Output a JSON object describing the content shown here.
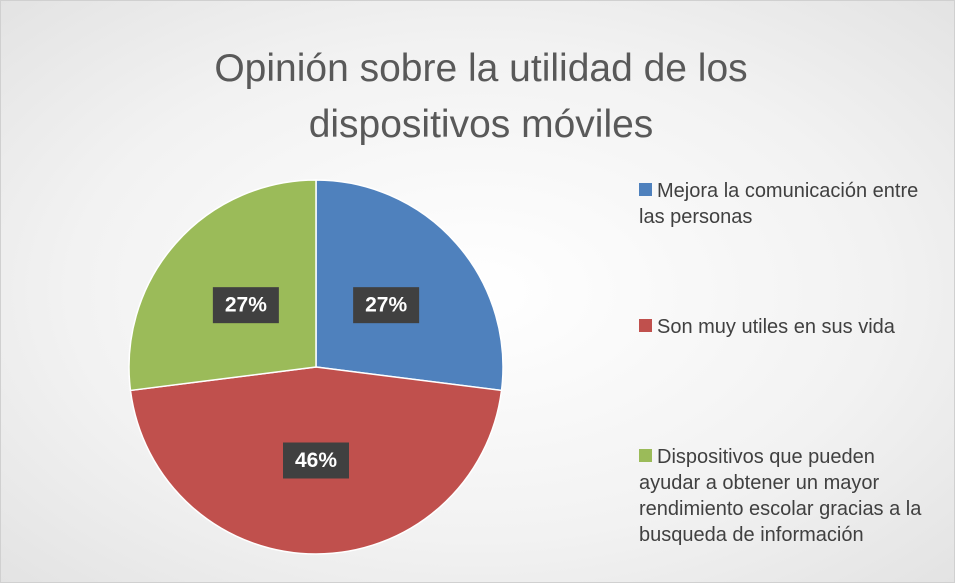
{
  "chart_data": {
    "type": "pie",
    "title": "Opinión sobre la utilidad de los dispositivos móviles",
    "categories": [
      "Mejora la comunicación entre las personas",
      "Son muy utiles en sus vida",
      "Dispositivos que pueden ayudar a obtener un mayor rendimiento escolar gracias a la busqueda de información"
    ],
    "values": [
      27,
      46,
      27
    ],
    "value_labels": [
      "27%",
      "46%",
      "27%"
    ],
    "colors": [
      "#4f81bd",
      "#c0504d",
      "#9bbb59"
    ],
    "legend": "right"
  }
}
